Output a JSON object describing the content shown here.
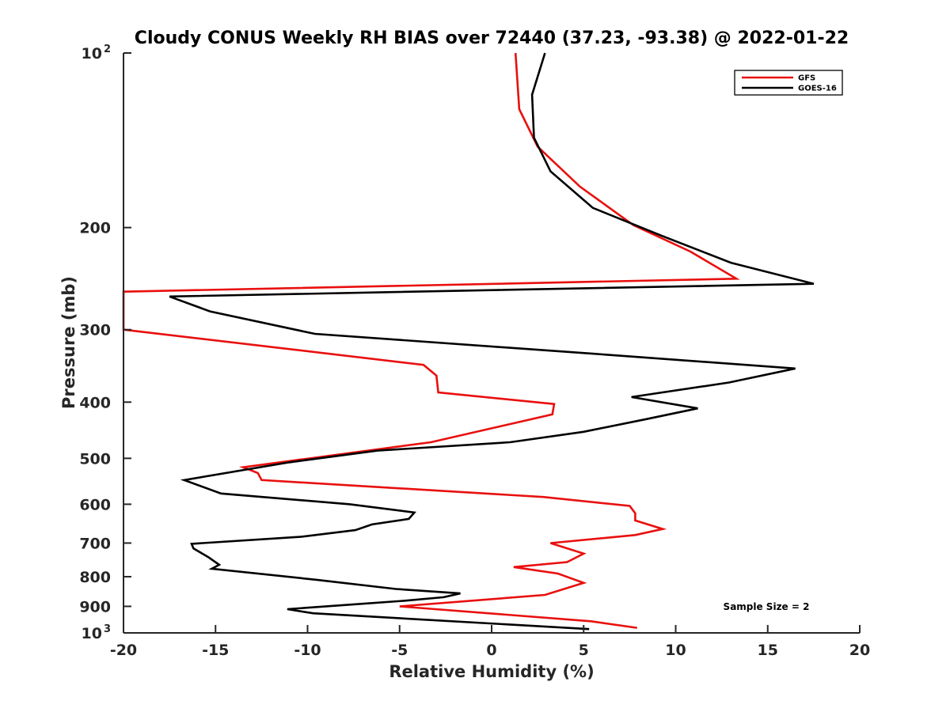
{
  "chart_data": {
    "type": "line",
    "title": "Cloudy CONUS Weekly RH BIAS over 72440 (37.23, -93.38) @ 2022-01-22",
    "xlabel": "Relative Humidity (%)",
    "ylabel": "Pressure (mb)",
    "xlim": [
      -20,
      20
    ],
    "ylim": [
      100,
      1000
    ],
    "y_scale": "log",
    "y_reversed": true,
    "x_ticks": [
      -20,
      -15,
      -10,
      -5,
      0,
      5,
      10,
      15,
      20
    ],
    "x_tick_labels": [
      "-20",
      "-15",
      "-10",
      "-5",
      "0",
      "5",
      "10",
      "15",
      "20"
    ],
    "y_ticks": [
      {
        "value": 100,
        "base": "10",
        "exp": "2"
      },
      {
        "value": 200,
        "label": "200"
      },
      {
        "value": 300,
        "label": "300"
      },
      {
        "value": 400,
        "label": "400"
      },
      {
        "value": 500,
        "label": "500"
      },
      {
        "value": 600,
        "label": "600"
      },
      {
        "value": 700,
        "label": "700"
      },
      {
        "value": 800,
        "label": "800"
      },
      {
        "value": 900,
        "label": "900"
      },
      {
        "value": 1000,
        "base": "10",
        "exp": "3"
      }
    ],
    "legend_position": "top-right",
    "grid": false,
    "annotation": "Sample Size = 2",
    "series": [
      {
        "name": "GFS",
        "color": "#e8100e",
        "points": [
          [
            1.3,
            100
          ],
          [
            1.5,
            125
          ],
          [
            2.5,
            145
          ],
          [
            4.8,
            170
          ],
          [
            7.7,
            198
          ],
          [
            10.8,
            220
          ],
          [
            13.3,
            245
          ],
          [
            -20.0,
            258
          ],
          [
            -20.0,
            300
          ],
          [
            -3.7,
            345
          ],
          [
            -3.0,
            360
          ],
          [
            -2.9,
            385
          ],
          [
            3.4,
            403
          ],
          [
            3.3,
            420
          ],
          [
            -3.3,
            469
          ],
          [
            -13.5,
            518
          ],
          [
            -12.7,
            530
          ],
          [
            -12.5,
            545
          ],
          [
            2.8,
            583
          ],
          [
            7.5,
            604
          ],
          [
            7.8,
            622
          ],
          [
            7.8,
            640
          ],
          [
            9.3,
            662
          ],
          [
            7.8,
            678
          ],
          [
            3.2,
            700
          ],
          [
            5.0,
            730
          ],
          [
            4.1,
            755
          ],
          [
            1.2,
            770
          ],
          [
            3.6,
            790
          ],
          [
            5.0,
            820
          ],
          [
            2.9,
            860
          ],
          [
            -5.0,
            900
          ],
          [
            5.4,
            955
          ],
          [
            7.9,
            980
          ]
        ]
      },
      {
        "name": "GOES-16",
        "color": "#000000",
        "points": [
          [
            2.9,
            100
          ],
          [
            2.2,
            118
          ],
          [
            2.3,
            140
          ],
          [
            3.2,
            160
          ],
          [
            5.5,
            185
          ],
          [
            9.3,
            207
          ],
          [
            13.0,
            230
          ],
          [
            17.5,
            250
          ],
          [
            -17.5,
            263
          ],
          [
            -15.3,
            279
          ],
          [
            -9.6,
            305
          ],
          [
            5.5,
            330
          ],
          [
            16.5,
            350
          ],
          [
            12.9,
            370
          ],
          [
            7.6,
            392
          ],
          [
            11.2,
            410
          ],
          [
            8.4,
            428
          ],
          [
            5.0,
            450
          ],
          [
            1.0,
            469
          ],
          [
            -6.2,
            485
          ],
          [
            -11.0,
            508
          ],
          [
            -16.7,
            545
          ],
          [
            -14.7,
            575
          ],
          [
            -7.7,
            600
          ],
          [
            -4.2,
            620
          ],
          [
            -4.5,
            636
          ],
          [
            -6.5,
            650
          ],
          [
            -7.4,
            665
          ],
          [
            -10.4,
            683
          ],
          [
            -16.3,
            702
          ],
          [
            -16.2,
            715
          ],
          [
            -15.4,
            740
          ],
          [
            -14.8,
            763
          ],
          [
            -15.2,
            775
          ],
          [
            -9.5,
            810
          ],
          [
            -5.2,
            840
          ],
          [
            -1.7,
            855
          ],
          [
            -2.6,
            868
          ],
          [
            -4.7,
            880
          ],
          [
            -11.1,
            910
          ],
          [
            -9.7,
            925
          ],
          [
            5.3,
            985
          ]
        ]
      }
    ]
  }
}
